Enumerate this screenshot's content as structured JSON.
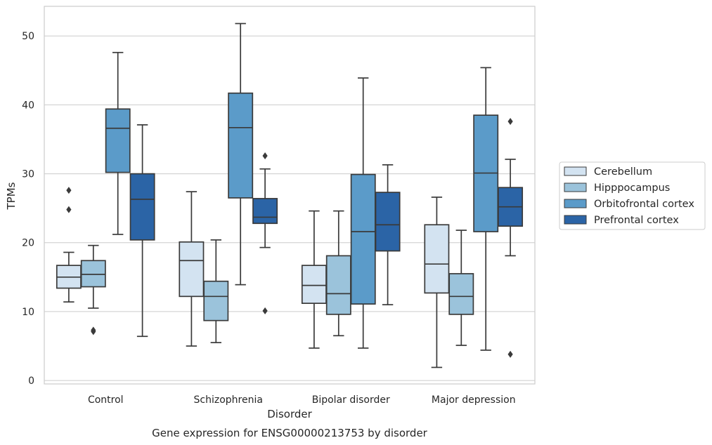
{
  "chart_data": {
    "type": "box",
    "xlabel": "Disorder",
    "ylabel": "TPMs",
    "caption": "Gene expression for ENSG00000213753 by disorder",
    "ylim": [
      -0.5,
      54.3
    ],
    "yticks": [
      0,
      10,
      20,
      30,
      40,
      50
    ],
    "grid": "horizontal",
    "legend_position": "right",
    "categories": [
      "Control",
      "Schizophrenia",
      "Bipolar disorder",
      "Major depression"
    ],
    "series": [
      {
        "name": "Cerebellum",
        "color": "#d3e3f1",
        "boxes": [
          {
            "whisker_low": 11.4,
            "q1": 13.4,
            "median": 15.0,
            "q3": 16.7,
            "whisker_high": 18.6,
            "outliers": [
              24.8,
              27.6
            ]
          },
          {
            "whisker_low": 5.0,
            "q1": 12.2,
            "median": 17.4,
            "q3": 20.1,
            "whisker_high": 27.4,
            "outliers": []
          },
          {
            "whisker_low": 4.7,
            "q1": 11.2,
            "median": 13.8,
            "q3": 16.7,
            "whisker_high": 24.6,
            "outliers": []
          },
          {
            "whisker_low": 1.9,
            "q1": 12.7,
            "median": 16.9,
            "q3": 22.6,
            "whisker_high": 26.6,
            "outliers": []
          }
        ]
      },
      {
        "name": "Hipppocampus",
        "color": "#9bc3db",
        "boxes": [
          {
            "whisker_low": 10.5,
            "q1": 13.6,
            "median": 15.4,
            "q3": 17.4,
            "whisker_high": 19.6,
            "outliers": [
              7.1,
              7.3
            ]
          },
          {
            "whisker_low": 5.5,
            "q1": 8.7,
            "median": 12.2,
            "q3": 14.4,
            "whisker_high": 20.4,
            "outliers": []
          },
          {
            "whisker_low": 6.5,
            "q1": 9.6,
            "median": 12.6,
            "q3": 18.1,
            "whisker_high": 24.6,
            "outliers": []
          },
          {
            "whisker_low": 5.1,
            "q1": 9.6,
            "median": 12.2,
            "q3": 15.5,
            "whisker_high": 21.8,
            "outliers": []
          }
        ]
      },
      {
        "name": "Orbitofrontal cortex",
        "color": "#5b9bc9",
        "boxes": [
          {
            "whisker_low": 21.2,
            "q1": 30.2,
            "median": 36.6,
            "q3": 39.4,
            "whisker_high": 47.6,
            "outliers": []
          },
          {
            "whisker_low": 13.9,
            "q1": 26.5,
            "median": 36.7,
            "q3": 41.7,
            "whisker_high": 51.8,
            "outliers": []
          },
          {
            "whisker_low": 4.7,
            "q1": 11.1,
            "median": 21.6,
            "q3": 29.9,
            "whisker_high": 43.9,
            "outliers": []
          },
          {
            "whisker_low": 4.4,
            "q1": 21.6,
            "median": 30.1,
            "q3": 38.5,
            "whisker_high": 45.4,
            "outliers": []
          }
        ]
      },
      {
        "name": "Prefrontal cortex",
        "color": "#2b64a6",
        "boxes": [
          {
            "whisker_low": 6.4,
            "q1": 20.4,
            "median": 26.3,
            "q3": 30.0,
            "whisker_high": 37.1,
            "outliers": []
          },
          {
            "whisker_low": 19.3,
            "q1": 22.8,
            "median": 23.7,
            "q3": 26.4,
            "whisker_high": 30.7,
            "outliers": [
              10.1,
              32.6
            ]
          },
          {
            "whisker_low": 11.0,
            "q1": 18.8,
            "median": 22.6,
            "q3": 27.3,
            "whisker_high": 31.3,
            "outliers": []
          },
          {
            "whisker_low": 18.1,
            "q1": 22.4,
            "median": 25.2,
            "q3": 28.0,
            "whisker_high": 32.1,
            "outliers": [
              3.8,
              37.6
            ]
          }
        ]
      }
    ]
  }
}
